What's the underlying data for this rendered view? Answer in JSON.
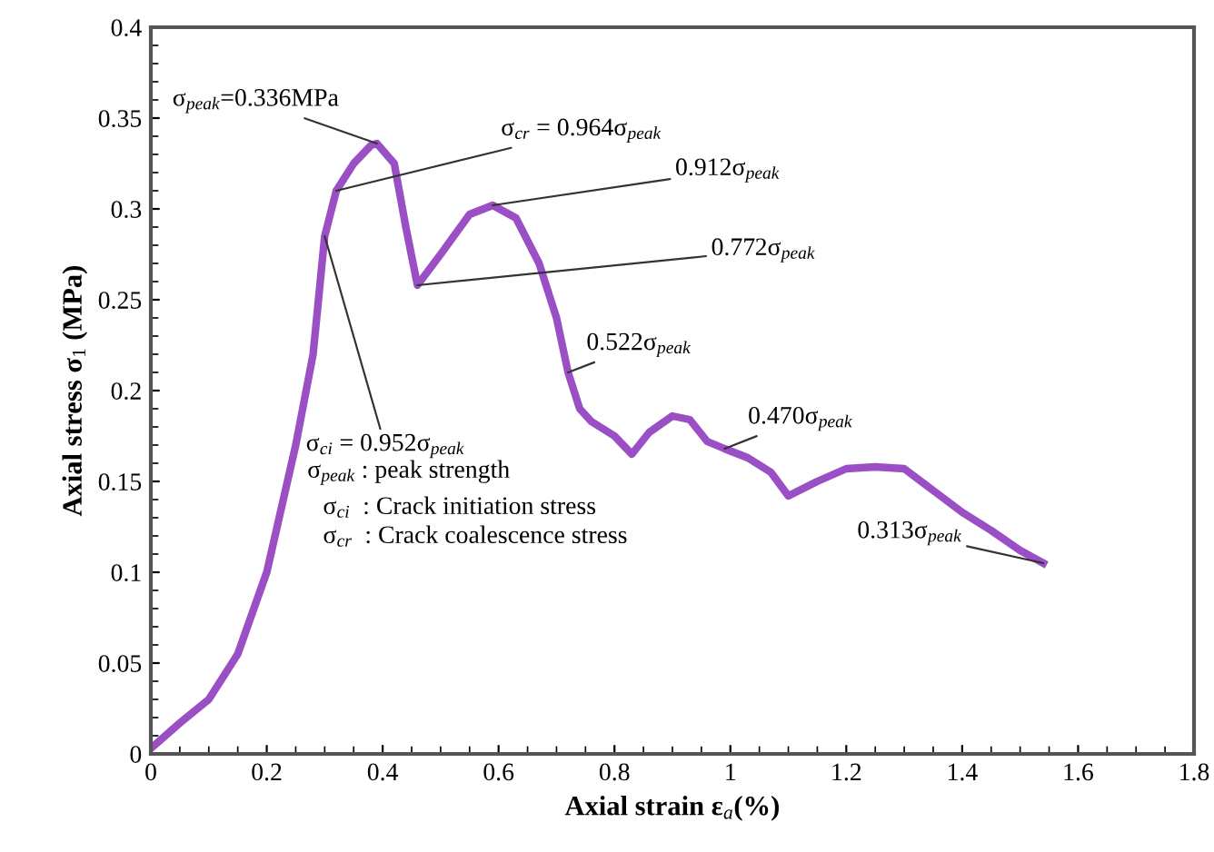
{
  "chart_data": {
    "type": "line",
    "xlabel": "Axial strain ε$_{a}$(%)",
    "ylabel": "Axial stress σ$_{1}$ (MPa)",
    "xlim": [
      0,
      1.8
    ],
    "xticks": [
      0,
      0.2,
      0.4,
      0.6,
      0.8,
      1,
      1.2,
      1.4,
      1.6,
      1.8
    ],
    "ylim": [
      0,
      0.4
    ],
    "yticks": [
      0,
      0.05,
      0.1,
      0.15,
      0.2,
      0.25,
      0.3,
      0.35,
      0.4
    ],
    "grid": false,
    "legend": false,
    "marker": "none",
    "line_style": "solid",
    "series": [
      {
        "color": "#9b4fc4",
        "x": [
          0,
          0.05,
          0.1,
          0.15,
          0.2,
          0.25,
          0.28,
          0.3,
          0.32,
          0.35,
          0.38,
          0.39,
          0.42,
          0.44,
          0.46,
          0.5,
          0.55,
          0.59,
          0.63,
          0.67,
          0.7,
          0.72,
          0.74,
          0.76,
          0.8,
          0.83,
          0.86,
          0.9,
          0.93,
          0.96,
          0.99,
          1.03,
          1.07,
          1.1,
          1.15,
          1.2,
          1.25,
          1.3,
          1.35,
          1.4,
          1.45,
          1.5,
          1.54
        ],
        "values": [
          0.003,
          0.017,
          0.03,
          0.055,
          0.1,
          0.17,
          0.22,
          0.285,
          0.31,
          0.325,
          0.335,
          0.336,
          0.325,
          0.29,
          0.258,
          0.275,
          0.297,
          0.302,
          0.295,
          0.27,
          0.24,
          0.21,
          0.19,
          0.183,
          0.175,
          0.165,
          0.177,
          0.186,
          0.184,
          0.172,
          0.168,
          0.163,
          0.155,
          0.142,
          0.15,
          0.157,
          0.158,
          0.157,
          0.145,
          0.133,
          0.123,
          0.112,
          0.105
        ]
      }
    ],
    "annotations": [
      {
        "text": "σ$_{peak}$=0.336MPa",
        "x": 0.39,
        "y": 0.336
      },
      {
        "text": "σ$_{cr}$ = 0.964σ$_{peak}$",
        "x": 0.32,
        "y": 0.31
      },
      {
        "text": "0.912σ$_{peak}$",
        "x": 0.59,
        "y": 0.302
      },
      {
        "text": "0.772σ$_{peak}$",
        "x": 0.46,
        "y": 0.258
      },
      {
        "text": "σ$_{ci}$ = 0.952σ$_{peak}$",
        "x": 0.3,
        "y": 0.285
      },
      {
        "text": "0.522σ$_{peak}$",
        "x": 0.72,
        "y": 0.21
      },
      {
        "text": "0.470σ$_{peak}$",
        "x": 0.99,
        "y": 0.168
      },
      {
        "text": "0.313σ$_{peak}$",
        "x": 1.54,
        "y": 0.105
      },
      "σ$_{peak}$ : peak strength",
      "σ$_{ci}$  : Crack initiation stress",
      "σ$_{cr}$  : Crack coalescence stress"
    ]
  }
}
